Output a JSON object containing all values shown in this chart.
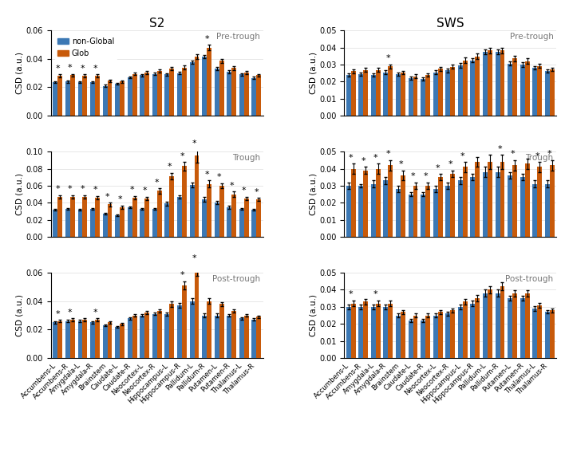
{
  "title_left": "S2",
  "title_right": "SWS",
  "ylabel": "CSD (a.u.)",
  "color_nonglob": "#3c78b4",
  "color_glob": "#c85a0a",
  "categories": [
    "Accumbens-L",
    "Accumbens-R",
    "Amygdala-L",
    "Amygdala-R",
    "Brainstem",
    "Caudate-L",
    "Caudate-R",
    "Neocortex-L",
    "Neocortex-R",
    "Hippocampus-L",
    "Hippocampus-R",
    "Pallidum-L",
    "Pallidum-R",
    "Putamen-L",
    "Putamen-R",
    "Thalamus-L",
    "Thalamus-R"
  ],
  "s2_pretrough_nonglob": [
    0.0235,
    0.024,
    0.0235,
    0.0235,
    0.021,
    0.0225,
    0.027,
    0.0285,
    0.0295,
    0.029,
    0.03,
    0.0375,
    0.0415,
    0.033,
    0.031,
    0.029,
    0.0265
  ],
  "s2_pretrough_glob": [
    0.028,
    0.0285,
    0.028,
    0.028,
    0.0245,
    0.024,
    0.0295,
    0.0305,
    0.0315,
    0.033,
    0.034,
    0.0415,
    0.048,
    0.0385,
    0.0335,
    0.0305,
    0.0285
  ],
  "s2_pretrough_nonglob_err": [
    0.0007,
    0.0007,
    0.0007,
    0.0007,
    0.0007,
    0.0007,
    0.0008,
    0.0008,
    0.0008,
    0.0008,
    0.001,
    0.0012,
    0.0012,
    0.0012,
    0.001,
    0.0008,
    0.0008
  ],
  "s2_pretrough_glob_err": [
    0.001,
    0.001,
    0.001,
    0.001,
    0.0008,
    0.0008,
    0.001,
    0.001,
    0.001,
    0.0012,
    0.0014,
    0.0016,
    0.002,
    0.0014,
    0.0012,
    0.001,
    0.001
  ],
  "s2_pretrough_sig": [
    1,
    1,
    1,
    1,
    0,
    0,
    0,
    0,
    0,
    0,
    0,
    0,
    1,
    0,
    0,
    0,
    0
  ],
  "s2_trough_nonglob": [
    0.032,
    0.033,
    0.032,
    0.033,
    0.027,
    0.025,
    0.035,
    0.033,
    0.033,
    0.039,
    0.047,
    0.061,
    0.044,
    0.04,
    0.035,
    0.033,
    0.032
  ],
  "s2_trough_glob": [
    0.047,
    0.047,
    0.047,
    0.046,
    0.038,
    0.035,
    0.046,
    0.045,
    0.054,
    0.071,
    0.083,
    0.095,
    0.062,
    0.06,
    0.05,
    0.045,
    0.044
  ],
  "s2_trough_nonglob_err": [
    0.001,
    0.001,
    0.001,
    0.001,
    0.001,
    0.001,
    0.001,
    0.001,
    0.001,
    0.002,
    0.002,
    0.003,
    0.003,
    0.002,
    0.002,
    0.001,
    0.001
  ],
  "s2_trough_glob_err": [
    0.002,
    0.002,
    0.002,
    0.002,
    0.002,
    0.002,
    0.002,
    0.002,
    0.003,
    0.004,
    0.005,
    0.008,
    0.004,
    0.003,
    0.003,
    0.002,
    0.002
  ],
  "s2_trough_sig": [
    1,
    1,
    1,
    1,
    1,
    1,
    1,
    1,
    1,
    1,
    1,
    1,
    1,
    1,
    1,
    1,
    1
  ],
  "s2_posttrough_nonglob": [
    0.025,
    0.026,
    0.026,
    0.025,
    0.023,
    0.022,
    0.028,
    0.03,
    0.031,
    0.031,
    0.037,
    0.04,
    0.03,
    0.03,
    0.03,
    0.028,
    0.027
  ],
  "s2_posttrough_glob": [
    0.026,
    0.027,
    0.027,
    0.027,
    0.025,
    0.024,
    0.03,
    0.032,
    0.033,
    0.038,
    0.051,
    0.062,
    0.04,
    0.038,
    0.033,
    0.03,
    0.029
  ],
  "s2_posttrough_nonglob_err": [
    0.0008,
    0.0008,
    0.0008,
    0.0008,
    0.0007,
    0.0007,
    0.0008,
    0.0009,
    0.0009,
    0.0012,
    0.0015,
    0.002,
    0.0014,
    0.0012,
    0.001,
    0.0008,
    0.0008
  ],
  "s2_posttrough_glob_err": [
    0.001,
    0.001,
    0.001,
    0.001,
    0.0008,
    0.0008,
    0.001,
    0.001,
    0.0012,
    0.002,
    0.003,
    0.004,
    0.002,
    0.0015,
    0.0012,
    0.001,
    0.001
  ],
  "s2_posttrough_sig": [
    1,
    1,
    0,
    1,
    0,
    0,
    0,
    0,
    0,
    0,
    1,
    1,
    0,
    0,
    0,
    0,
    0
  ],
  "sws_pretrough_nonglob": [
    0.024,
    0.0245,
    0.024,
    0.0255,
    0.0245,
    0.022,
    0.0215,
    0.0255,
    0.0265,
    0.0295,
    0.0325,
    0.0375,
    0.0375,
    0.0305,
    0.03,
    0.028,
    0.0262
  ],
  "sws_pretrough_glob": [
    0.0262,
    0.0268,
    0.0268,
    0.029,
    0.0252,
    0.0232,
    0.0238,
    0.0275,
    0.0287,
    0.0325,
    0.0348,
    0.0382,
    0.0382,
    0.0335,
    0.032,
    0.0292,
    0.0272
  ],
  "sws_pretrough_nonglob_err": [
    0.001,
    0.001,
    0.001,
    0.001,
    0.001,
    0.0008,
    0.0008,
    0.001,
    0.001,
    0.0012,
    0.0012,
    0.0015,
    0.0015,
    0.0012,
    0.0012,
    0.001,
    0.001
  ],
  "sws_pretrough_glob_err": [
    0.0012,
    0.0012,
    0.0012,
    0.0012,
    0.001,
    0.001,
    0.001,
    0.0011,
    0.0012,
    0.0015,
    0.0015,
    0.0017,
    0.0017,
    0.0015,
    0.0015,
    0.0013,
    0.0011
  ],
  "sws_pretrough_sig": [
    0,
    0,
    0,
    1,
    0,
    0,
    0,
    0,
    0,
    0,
    0,
    0,
    0,
    0,
    0,
    0,
    0
  ],
  "sws_trough_nonglob": [
    0.03,
    0.03,
    0.031,
    0.033,
    0.028,
    0.025,
    0.025,
    0.028,
    0.03,
    0.033,
    0.035,
    0.038,
    0.038,
    0.036,
    0.035,
    0.031,
    0.031
  ],
  "sws_trough_glob": [
    0.04,
    0.039,
    0.04,
    0.042,
    0.036,
    0.03,
    0.03,
    0.035,
    0.037,
    0.041,
    0.044,
    0.044,
    0.044,
    0.042,
    0.043,
    0.041,
    0.042
  ],
  "sws_trough_nonglob_err": [
    0.002,
    0.001,
    0.002,
    0.002,
    0.002,
    0.001,
    0.001,
    0.002,
    0.002,
    0.002,
    0.002,
    0.003,
    0.003,
    0.002,
    0.002,
    0.002,
    0.002
  ],
  "sws_trough_glob_err": [
    0.003,
    0.002,
    0.003,
    0.003,
    0.003,
    0.002,
    0.002,
    0.002,
    0.002,
    0.003,
    0.003,
    0.004,
    0.004,
    0.003,
    0.003,
    0.003,
    0.003
  ],
  "sws_trough_sig": [
    1,
    1,
    1,
    1,
    1,
    1,
    1,
    1,
    1,
    1,
    0,
    0,
    1,
    1,
    0,
    1,
    1
  ],
  "sws_posttrough_nonglob": [
    0.03,
    0.03,
    0.03,
    0.03,
    0.025,
    0.022,
    0.022,
    0.025,
    0.026,
    0.03,
    0.032,
    0.038,
    0.038,
    0.035,
    0.035,
    0.029,
    0.027
  ],
  "sws_posttrough_glob": [
    0.032,
    0.033,
    0.032,
    0.032,
    0.027,
    0.025,
    0.025,
    0.027,
    0.028,
    0.033,
    0.035,
    0.04,
    0.042,
    0.038,
    0.038,
    0.031,
    0.028
  ],
  "sws_posttrough_nonglob_err": [
    0.0015,
    0.0015,
    0.0015,
    0.0015,
    0.001,
    0.0008,
    0.0008,
    0.001,
    0.001,
    0.0015,
    0.0015,
    0.002,
    0.002,
    0.0015,
    0.0015,
    0.0012,
    0.001
  ],
  "sws_posttrough_glob_err": [
    0.0018,
    0.0018,
    0.0018,
    0.0018,
    0.0012,
    0.001,
    0.001,
    0.0012,
    0.0012,
    0.0018,
    0.0018,
    0.0022,
    0.0022,
    0.0018,
    0.0018,
    0.0014,
    0.0012
  ],
  "sws_posttrough_sig": [
    1,
    0,
    1,
    0,
    0,
    0,
    0,
    0,
    0,
    0,
    0,
    0,
    0,
    0,
    0,
    0,
    0
  ],
  "s2_ylim_pretrough": [
    0,
    0.06
  ],
  "s2_ylim_trough": [
    0,
    0.1
  ],
  "s2_ylim_posttrough": [
    0,
    0.06
  ],
  "sws_ylim_pretrough": [
    0,
    0.05
  ],
  "sws_ylim_trough": [
    0,
    0.05
  ],
  "sws_ylim_posttrough": [
    0,
    0.05
  ],
  "s2_yticks_pretrough": [
    0,
    0.02,
    0.04,
    0.06
  ],
  "s2_yticks_trough": [
    0,
    0.02,
    0.04,
    0.06,
    0.08,
    0.1
  ],
  "s2_yticks_posttrough": [
    0,
    0.02,
    0.04,
    0.06
  ],
  "sws_yticks_pretrough": [
    0,
    0.01,
    0.02,
    0.03,
    0.04,
    0.05
  ],
  "sws_yticks_trough": [
    0,
    0.01,
    0.02,
    0.03,
    0.04,
    0.05
  ],
  "sws_yticks_posttrough": [
    0,
    0.01,
    0.02,
    0.03,
    0.04,
    0.05
  ]
}
